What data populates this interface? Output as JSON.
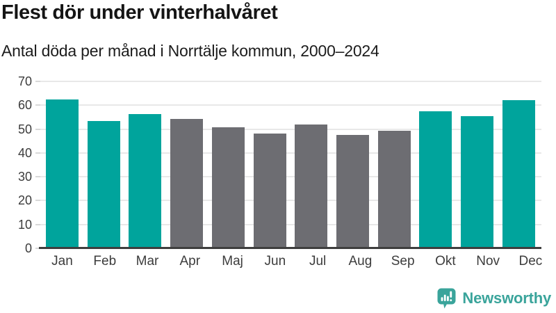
{
  "chart_data": {
    "type": "bar",
    "title": "Flest dör under vinterhalvåret",
    "subtitle": "Antal döda per månad i Norrtälje kommun, 2000–2024",
    "categories": [
      "Jan",
      "Feb",
      "Mar",
      "Apr",
      "Maj",
      "Jun",
      "Jul",
      "Aug",
      "Sep",
      "Okt",
      "Nov",
      "Dec"
    ],
    "values": [
      62.4,
      53.4,
      56.2,
      54.4,
      50.8,
      48.1,
      51.9,
      47.6,
      49.2,
      57.5,
      55.4,
      62.1
    ],
    "bar_colors": [
      "#00a49c",
      "#00a49c",
      "#00a49c",
      "#6d6d72",
      "#6d6d72",
      "#6d6d72",
      "#6d6d72",
      "#6d6d72",
      "#6d6d72",
      "#00a49c",
      "#00a49c",
      "#00a49c"
    ],
    "xlabel": "",
    "ylabel": "",
    "ylim": [
      0,
      70
    ],
    "yticks": [
      0,
      10,
      20,
      30,
      40,
      50,
      60,
      70
    ],
    "grid": true,
    "legend_position": "none",
    "highlight_color": "#00a49c",
    "base_color": "#6d6d72",
    "gridline_color": "#e8e8e8",
    "axis_color": "#3e3e3e"
  },
  "branding": {
    "logo_text": "Newsworthy",
    "logo_icon": "speech-bubble-bar-chart",
    "logo_color": "#3aa49b"
  }
}
